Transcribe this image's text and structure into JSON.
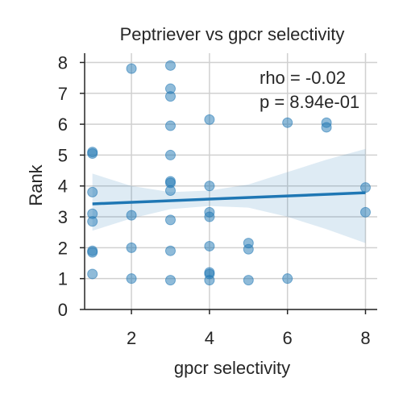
{
  "chart_data": {
    "type": "scatter",
    "title": "Peptriever vs gpcr selectivity",
    "xlabel": "gpcr selectivity",
    "ylabel": "Rank",
    "xlim": [
      0.8,
      8.3
    ],
    "ylim": [
      0,
      8.3
    ],
    "xticks": [
      2,
      4,
      6,
      8
    ],
    "yticks": [
      0,
      1,
      2,
      3,
      4,
      5,
      6,
      7,
      8
    ],
    "grid": true,
    "points": [
      {
        "x": 1,
        "y": 5.1
      },
      {
        "x": 1,
        "y": 5.05
      },
      {
        "x": 1,
        "y": 3.8
      },
      {
        "x": 1,
        "y": 3.1
      },
      {
        "x": 1,
        "y": 2.85
      },
      {
        "x": 1,
        "y": 1.9
      },
      {
        "x": 1,
        "y": 1.85
      },
      {
        "x": 1,
        "y": 1.15
      },
      {
        "x": 2,
        "y": 7.8
      },
      {
        "x": 2,
        "y": 3.05
      },
      {
        "x": 2,
        "y": 2.0
      },
      {
        "x": 2,
        "y": 1.0
      },
      {
        "x": 3,
        "y": 7.9
      },
      {
        "x": 3,
        "y": 7.15
      },
      {
        "x": 3,
        "y": 6.9
      },
      {
        "x": 3,
        "y": 5.95
      },
      {
        "x": 3,
        "y": 5.0
      },
      {
        "x": 3,
        "y": 4.15
      },
      {
        "x": 3,
        "y": 4.1
      },
      {
        "x": 3,
        "y": 3.85
      },
      {
        "x": 3,
        "y": 2.9
      },
      {
        "x": 3,
        "y": 1.9
      },
      {
        "x": 3,
        "y": 0.95
      },
      {
        "x": 4,
        "y": 6.15
      },
      {
        "x": 4,
        "y": 4.0
      },
      {
        "x": 4,
        "y": 3.15
      },
      {
        "x": 4,
        "y": 3.0
      },
      {
        "x": 4,
        "y": 2.05
      },
      {
        "x": 4,
        "y": 1.2
      },
      {
        "x": 4,
        "y": 1.15
      },
      {
        "x": 4,
        "y": 0.95
      },
      {
        "x": 5,
        "y": 2.15
      },
      {
        "x": 5,
        "y": 1.95
      },
      {
        "x": 5,
        "y": 0.95
      },
      {
        "x": 6,
        "y": 6.05
      },
      {
        "x": 6,
        "y": 1.0
      },
      {
        "x": 7,
        "y": 6.05
      },
      {
        "x": 7,
        "y": 5.9
      },
      {
        "x": 8,
        "y": 3.95
      },
      {
        "x": 8,
        "y": 3.15
      }
    ],
    "regression": {
      "x_start": 1,
      "x_end": 8,
      "y_start": 3.42,
      "y_end": 3.78
    },
    "confidence_band": {
      "x": [
        1,
        2,
        3,
        4,
        5,
        6,
        7,
        8
      ],
      "lower": [
        2.55,
        2.95,
        3.25,
        3.35,
        3.3,
        3.0,
        2.6,
        2.15
      ],
      "upper": [
        4.4,
        4.0,
        3.8,
        3.85,
        4.05,
        4.45,
        4.85,
        5.2
      ]
    },
    "annotations": [
      {
        "text": "rho = -0.02"
      },
      {
        "text": "p = 8.94e-01"
      }
    ],
    "colors": {
      "points": "#1f77b4",
      "line": "#1f77b4",
      "band": "#1f77b4",
      "grid": "#d0d0d0",
      "axes": "#262626"
    }
  }
}
